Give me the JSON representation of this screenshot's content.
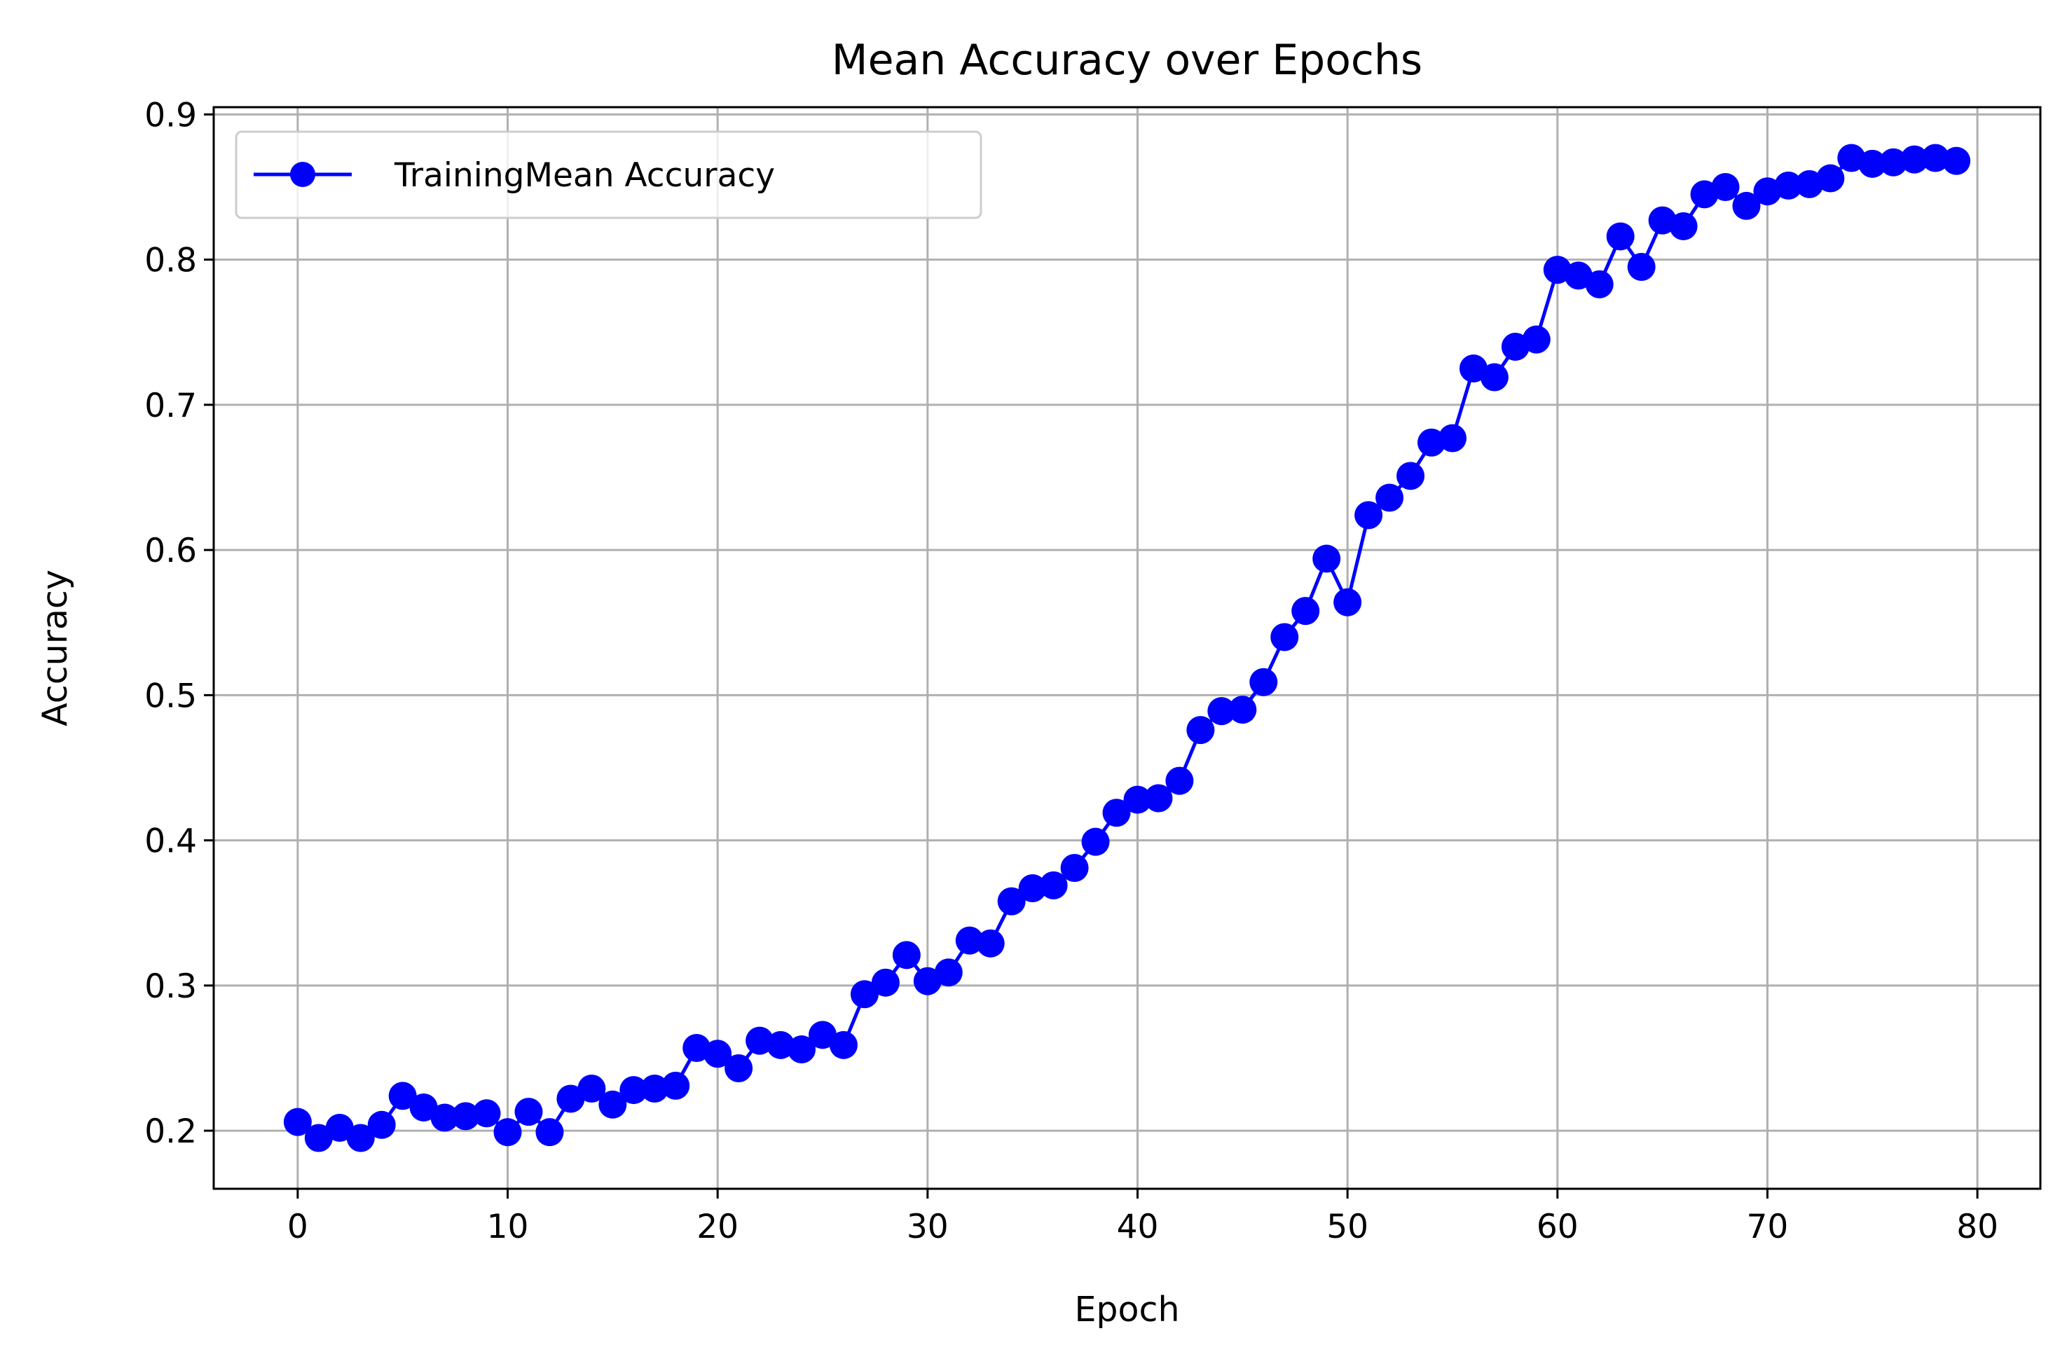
{
  "chart_data": {
    "type": "line",
    "title": "Mean Accuracy over Epochs",
    "xlabel": "Epoch",
    "ylabel": "Accuracy",
    "xlim": [
      -4,
      83
    ],
    "ylim": [
      0.16,
      0.905
    ],
    "xticks": [
      0,
      10,
      20,
      30,
      40,
      50,
      60,
      70,
      80
    ],
    "yticks": [
      0.2,
      0.3,
      0.4,
      0.5,
      0.6,
      0.7,
      0.8,
      0.9
    ],
    "xtick_labels": [
      "0",
      "10",
      "20",
      "30",
      "40",
      "50",
      "60",
      "70",
      "80"
    ],
    "ytick_labels": [
      "0.2",
      "0.3",
      "0.4",
      "0.5",
      "0.6",
      "0.7",
      "0.8",
      "0.9"
    ],
    "grid": true,
    "legend": {
      "position": "top-left"
    },
    "series": [
      {
        "name": "TrainingMean Accuracy",
        "color": "#0000ff",
        "marker": "circle",
        "x": [
          0,
          1,
          2,
          3,
          4,
          5,
          6,
          7,
          8,
          9,
          10,
          11,
          12,
          13,
          14,
          15,
          16,
          17,
          18,
          19,
          20,
          21,
          22,
          23,
          24,
          25,
          26,
          27,
          28,
          29,
          30,
          31,
          32,
          33,
          34,
          35,
          36,
          37,
          38,
          39,
          40,
          41,
          42,
          43,
          44,
          45,
          46,
          47,
          48,
          49,
          50,
          51,
          52,
          53,
          54,
          55,
          56,
          57,
          58,
          59,
          60,
          61,
          62,
          63,
          64,
          65,
          66,
          67,
          68,
          69,
          70,
          71,
          72,
          73,
          74,
          75,
          76,
          77,
          78,
          79
        ],
        "values": [
          0.206,
          0.195,
          0.202,
          0.195,
          0.204,
          0.224,
          0.216,
          0.209,
          0.21,
          0.212,
          0.199,
          0.213,
          0.199,
          0.222,
          0.229,
          0.218,
          0.228,
          0.229,
          0.231,
          0.257,
          0.253,
          0.243,
          0.262,
          0.259,
          0.256,
          0.266,
          0.259,
          0.294,
          0.302,
          0.321,
          0.303,
          0.309,
          0.331,
          0.329,
          0.358,
          0.367,
          0.369,
          0.381,
          0.399,
          0.419,
          0.428,
          0.429,
          0.441,
          0.476,
          0.489,
          0.49,
          0.509,
          0.54,
          0.558,
          0.594,
          0.564,
          0.624,
          0.636,
          0.651,
          0.674,
          0.677,
          0.725,
          0.719,
          0.74,
          0.745,
          0.793,
          0.789,
          0.783,
          0.816,
          0.795,
          0.827,
          0.823,
          0.845,
          0.85,
          0.837,
          0.847,
          0.851,
          0.852,
          0.856,
          0.87,
          0.866,
          0.867,
          0.869,
          0.87,
          0.868
        ]
      }
    ]
  }
}
